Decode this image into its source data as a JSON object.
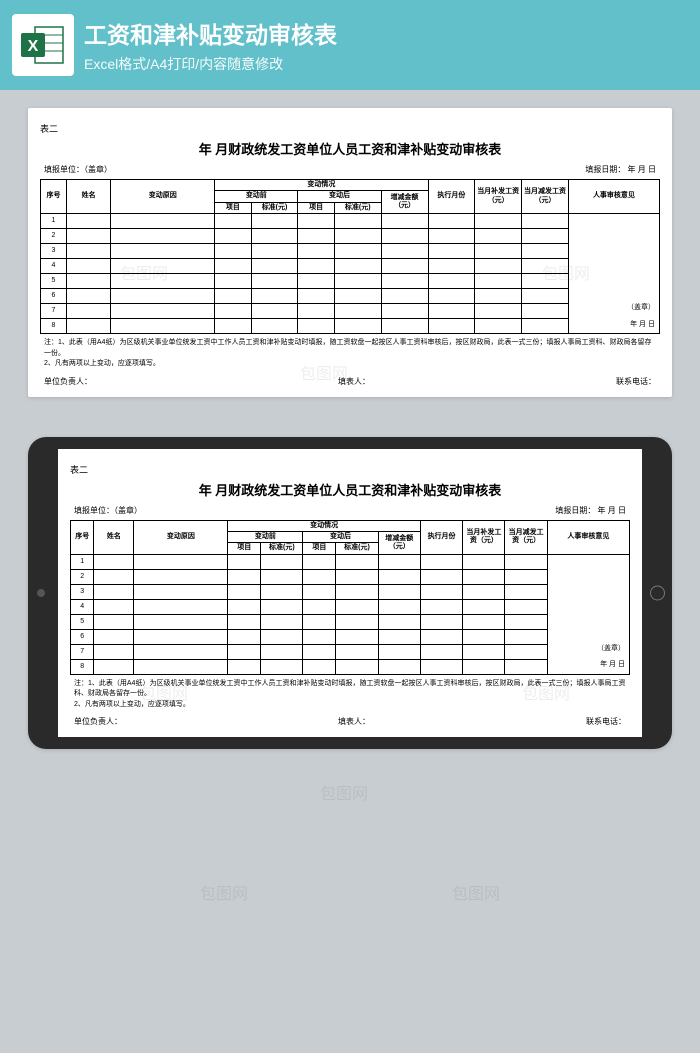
{
  "header": {
    "title": "工资和津补贴变动审核表",
    "subtitle": "Excel格式/A4打印/内容随意修改",
    "icon_color": "#1e7346"
  },
  "sheet": {
    "corner_label": "表二",
    "title": "年   月财政统发工资单位人员工资和津补贴变动审核表",
    "meta_left": "填报单位：（盖章）",
    "meta_right": "填报日期：        年   月   日",
    "headers": {
      "seq": "序号",
      "name": "姓名",
      "reason": "变动原因",
      "change_group": "变动情况",
      "before": "变动前",
      "after": "变动后",
      "item": "项目",
      "std": "标准(元)",
      "diff": "增减金额（元）",
      "exec_month": "执行月份",
      "pay_add": "当月补发工资（元）",
      "pay_sub": "当月减发工资（元）",
      "review": "人事审核意见"
    },
    "rows": [
      "1",
      "2",
      "3",
      "4",
      "5",
      "6",
      "7",
      "8"
    ],
    "review_seal": "（盖章）",
    "review_date": "年   月   日",
    "note1": "注：1、此表（用A4纸）为区级机关事业单位统发工资中工作人员工资和津补贴变动时填报，随工资软盘一起按区人事工资科审核后，按区财政局，此表一式三份；填报人事局工资科、财政局各留存一份。",
    "note2": "2、凡有两项以上变动，应逐项填写。",
    "footer": {
      "owner": "单位负责人：",
      "filler": "填表人：",
      "phone": "联系电话："
    }
  },
  "watermark_text": "包图网"
}
